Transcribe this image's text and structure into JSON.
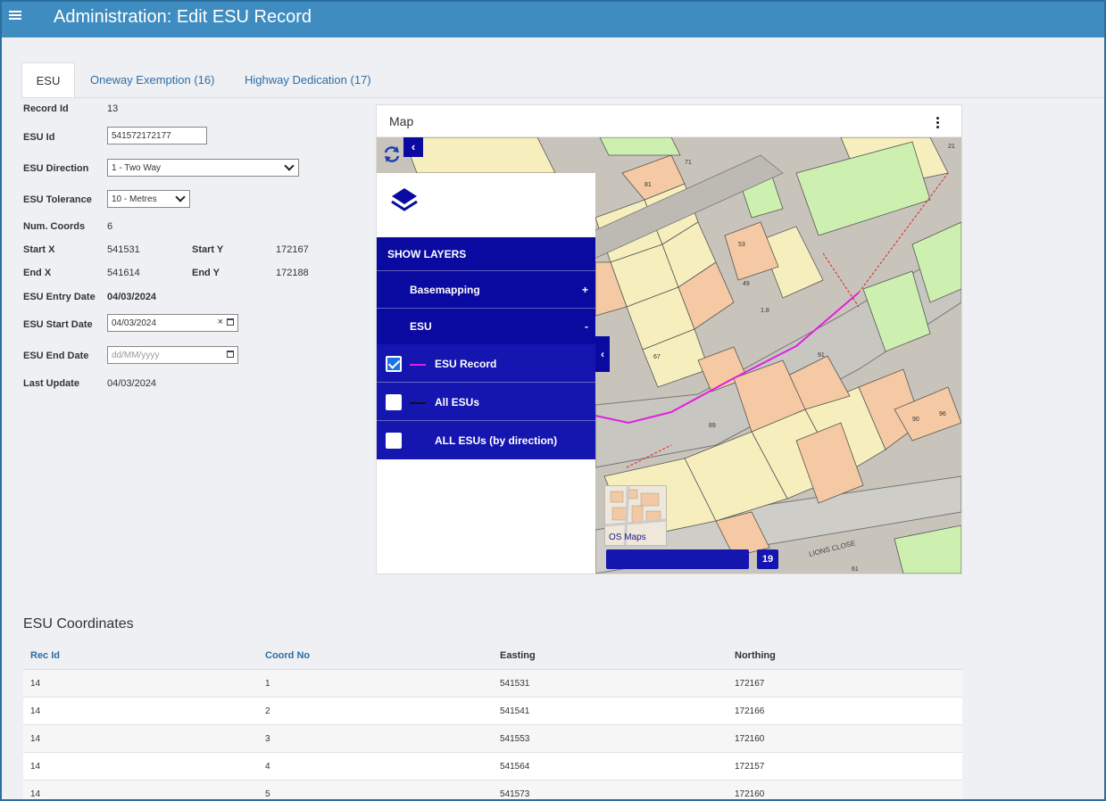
{
  "header": {
    "title": "Administration: Edit ESU Record"
  },
  "tabs": [
    {
      "label": "ESU"
    },
    {
      "label": "Oneway Exemption (16)"
    },
    {
      "label": "Highway Dedication (17)"
    }
  ],
  "form": {
    "record_id_label": "Record Id",
    "record_id": "13",
    "esu_id_label": "ESU Id",
    "esu_id": "541572172177",
    "direction_label": "ESU Direction",
    "direction": "1 - Two Way",
    "tolerance_label": "ESU Tolerance",
    "tolerance": "10 - Metres",
    "num_coords_label": "Num. Coords",
    "num_coords": "6",
    "start_x_label": "Start X",
    "start_x": "541531",
    "start_y_label": "Start Y",
    "start_y": "172167",
    "end_x_label": "End X",
    "end_x": "541614",
    "end_y_label": "End Y",
    "end_y": "172188",
    "entry_date_label": "ESU Entry Date",
    "entry_date": "04/03/2024",
    "start_date_label": "ESU Start Date",
    "start_date": "04/03/2024",
    "end_date_label": "ESU End Date",
    "end_date_placeholder": "dd/MM/yyyy",
    "last_update_label": "Last Update",
    "last_update": "04/03/2024"
  },
  "map": {
    "title": "Map",
    "layers": {
      "header": "SHOW LAYERS",
      "groups": [
        {
          "label": "Basemapping",
          "sign": "+"
        },
        {
          "label": "ESU",
          "sign": "-"
        }
      ],
      "items": [
        {
          "label": "ESU Record",
          "checked": true,
          "color": "#e020e0"
        },
        {
          "label": "All ESUs",
          "checked": false,
          "color": "#111111"
        },
        {
          "label": "ALL ESUs (by direction)",
          "checked": false,
          "color": ""
        }
      ]
    },
    "thumbnail_label": "OS Maps",
    "zoom_level": "19",
    "street_label": "LIONS CLOSE",
    "house_numbers": [
      "81",
      "71",
      "53",
      "49",
      "1.8",
      "67",
      "91",
      "89",
      "90",
      "96",
      "61",
      "21"
    ]
  },
  "coordinates": {
    "title": "ESU Coordinates",
    "columns": [
      "Rec Id",
      "Coord No",
      "Easting",
      "Northing"
    ],
    "rows": [
      [
        "14",
        "1",
        "541531",
        "172167"
      ],
      [
        "14",
        "2",
        "541541",
        "172166"
      ],
      [
        "14",
        "3",
        "541553",
        "172160"
      ],
      [
        "14",
        "4",
        "541564",
        "172157"
      ],
      [
        "14",
        "5",
        "541573",
        "172160"
      ]
    ]
  }
}
